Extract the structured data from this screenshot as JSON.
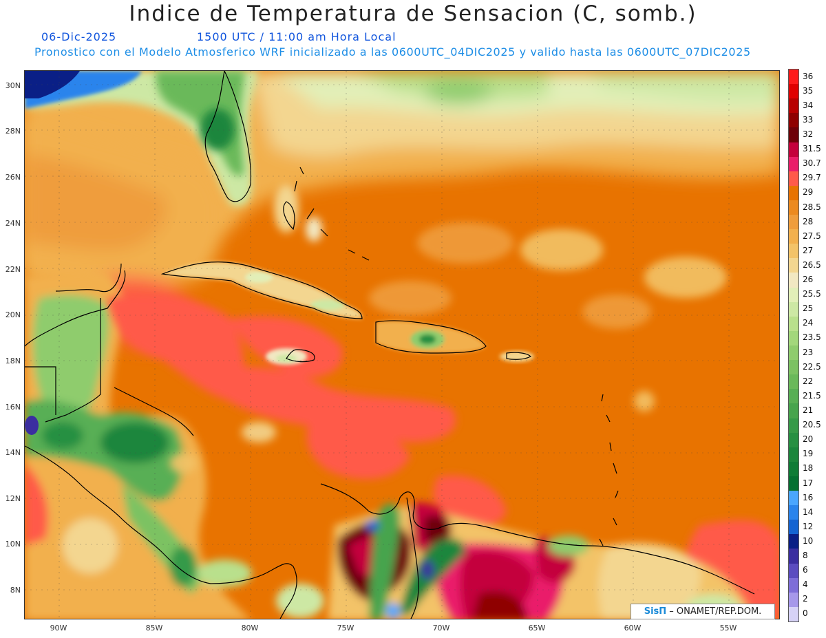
{
  "header": {
    "title": "Indice de Temperatura de Sensacion (C, somb.)",
    "date": "06-Dic-2025",
    "time": "1500 UTC / 11:00 am Hora Local",
    "model_info": "Pronostico con el Modelo Atmosferico WRF inicializado a las 0600UTC_04DIC2025 y valido hasta las  0600UTC_07DIC2025"
  },
  "map": {
    "latitude_labels": [
      "30N",
      "28N",
      "26N",
      "24N",
      "22N",
      "20N",
      "18N",
      "16N",
      "14N",
      "12N",
      "10N",
      "8N"
    ],
    "longitude_labels": [
      "90W",
      "85W",
      "80W",
      "75W",
      "70W",
      "65W",
      "60W",
      "55W"
    ]
  },
  "legend": {
    "levels": [
      {
        "label": "36",
        "color": "#ff1a1a"
      },
      {
        "label": "35",
        "color": "#e00000"
      },
      {
        "label": "34",
        "color": "#b80000"
      },
      {
        "label": "33",
        "color": "#8f0000"
      },
      {
        "label": "32",
        "color": "#6e0008"
      },
      {
        "label": "31.5",
        "color": "#c4003c"
      },
      {
        "label": "30.7",
        "color": "#ea1d6a"
      },
      {
        "label": "29.7",
        "color": "#ff5a4a"
      },
      {
        "label": "29",
        "color": "#e87300"
      },
      {
        "label": "28.5",
        "color": "#ec8a1f"
      },
      {
        "label": "28",
        "color": "#ef9d3c"
      },
      {
        "label": "27.5",
        "color": "#f2b04d"
      },
      {
        "label": "27",
        "color": "#f3c368"
      },
      {
        "label": "26.5",
        "color": "#f3d690"
      },
      {
        "label": "26",
        "color": "#f2e8c2"
      },
      {
        "label": "25.5",
        "color": "#e2efb8"
      },
      {
        "label": "25",
        "color": "#cde8a4"
      },
      {
        "label": "24",
        "color": "#b9e08c"
      },
      {
        "label": "23.5",
        "color": "#a3d77b"
      },
      {
        "label": "23",
        "color": "#8fcc6d"
      },
      {
        "label": "22.5",
        "color": "#7cc262"
      },
      {
        "label": "22",
        "color": "#6ab95a"
      },
      {
        "label": "21.5",
        "color": "#58af54"
      },
      {
        "label": "21",
        "color": "#47a44d"
      },
      {
        "label": "20.5",
        "color": "#369a48"
      },
      {
        "label": "20",
        "color": "#279042"
      },
      {
        "label": "19",
        "color": "#1b863c"
      },
      {
        "label": "18",
        "color": "#0f7c36"
      },
      {
        "label": "17",
        "color": "#057031"
      },
      {
        "label": "16",
        "color": "#4aa6ff"
      },
      {
        "label": "14",
        "color": "#2a84ec"
      },
      {
        "label": "12",
        "color": "#1464d2"
      },
      {
        "label": "10",
        "color": "#0a1f86"
      },
      {
        "label": "8",
        "color": "#3b2ea0"
      },
      {
        "label": "6",
        "color": "#5b4cc0"
      },
      {
        "label": "4",
        "color": "#7e6ed8"
      },
      {
        "label": "2",
        "color": "#a698ea"
      },
      {
        "label": "0",
        "color": "#d6d2f6"
      }
    ],
    "background_color": "#e87300"
  },
  "credit": {
    "brand": "SisΠ",
    "text": " – ONAMET/REP.DOM."
  }
}
